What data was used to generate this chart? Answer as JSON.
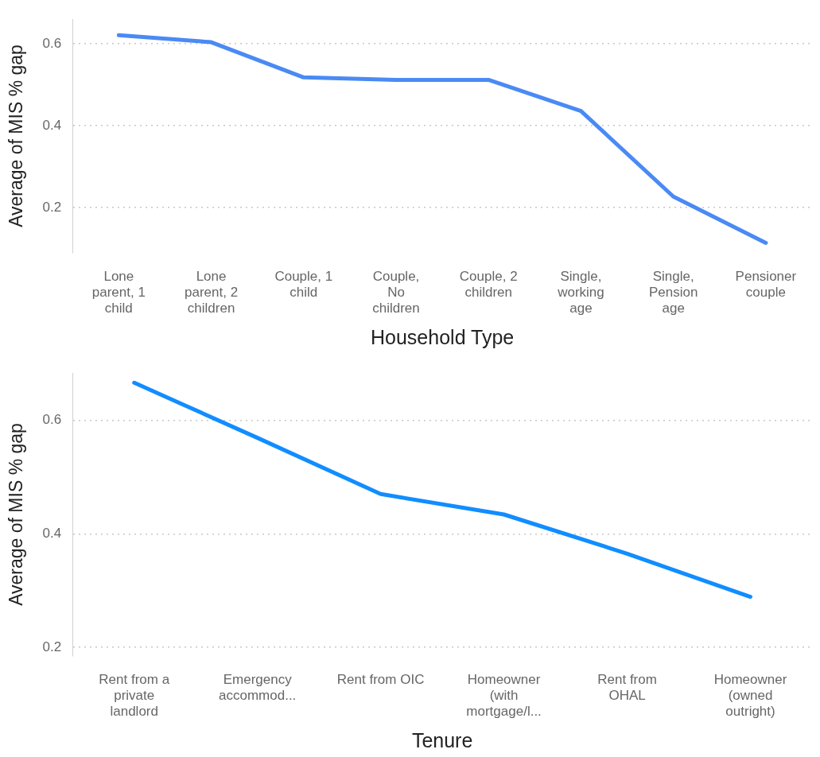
{
  "chart_data": [
    {
      "type": "line",
      "xlabel": "Household Type",
      "ylabel": "Average of MIS % gap",
      "categories": [
        "Lone parent, 1 child",
        "Lone parent, 2 children",
        "Couple, 1 child",
        "Couple, No children",
        "Couple, 2 children",
        "Single, working age",
        "Single, Pension age",
        "Pensioner couple"
      ],
      "series": [
        {
          "color": "#4a8af4",
          "values": [
            0.621,
            0.604,
            0.518,
            0.512,
            0.512,
            0.436,
            0.227,
            0.114
          ]
        }
      ],
      "ylim": [
        0.09,
        0.66
      ],
      "yticks": [
        0.2,
        0.4,
        0.6
      ],
      "grid": "y",
      "marker": "none",
      "line_style": "solid"
    },
    {
      "type": "line",
      "xlabel": "Tenure",
      "ylabel": "Average of MIS % gap",
      "categories": [
        "Rent from a private landlord",
        "Emergency accommod...",
        "Rent from OIC",
        "Homeowner (with mortgage/l...",
        "Rent from OHAL",
        "Homeowner (owned outright)"
      ],
      "series": [
        {
          "color": "#118dff",
          "values": [
            0.666,
            0.569,
            0.47,
            0.434,
            0.365,
            0.289
          ]
        }
      ],
      "ylim": [
        0.185,
        0.683
      ],
      "yticks": [
        0.2,
        0.4,
        0.6
      ],
      "grid": "y",
      "marker": "none",
      "line_style": "solid"
    }
  ]
}
